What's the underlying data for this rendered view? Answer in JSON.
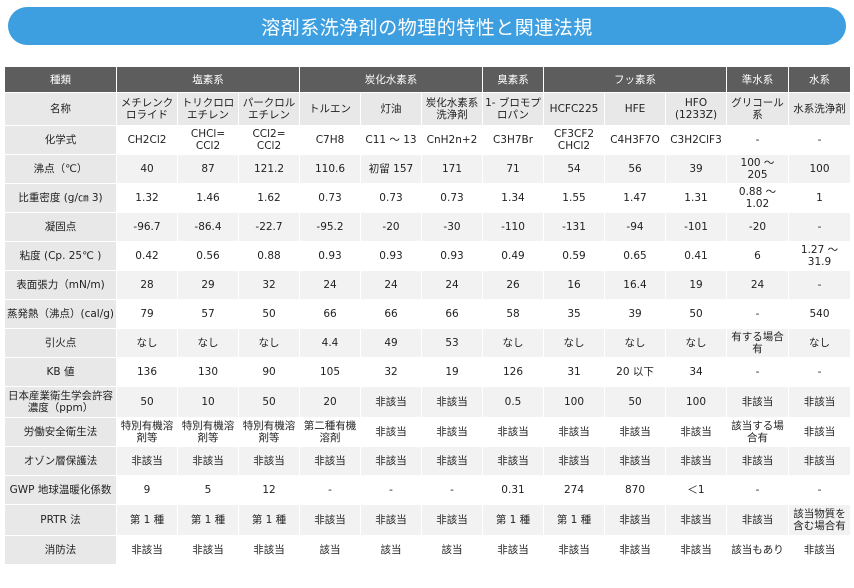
{
  "title": "溶剤系洗浄剤の物理的特性と関連法規",
  "group_header_label": "種類",
  "groups": [
    "塩素系",
    "炭化水素系",
    "臭素系",
    "フッ素系",
    "準水系",
    "水系"
  ],
  "name_header_label": "名称",
  "names": [
    "メチレンク\nロライド",
    "トリクロロ\nエチレン",
    "パークロル\nエチレン",
    "トルエン",
    "灯油",
    "炭化水素系\n洗浄剤",
    "1- ブロモプ\nロパン",
    "HCFC225",
    "HFE",
    "HFO\n(1233Z)",
    "グリコール\n系",
    "水系洗浄剤"
  ],
  "rows": [
    {
      "label": "化学式",
      "values": [
        "CH2Cl2",
        "CHCl=\nCCl2",
        "CCl2=\nCCl2",
        "C7H8",
        "C11 ～ 13",
        "CnH2n+2",
        "C3H7Br",
        "CF3CF2\nCHCl2",
        "C4H3F7O",
        "C3H2ClF3",
        "-",
        "-"
      ]
    },
    {
      "label": "沸点（℃）",
      "values": [
        "40",
        "87",
        "121.2",
        "110.6",
        "初留 157",
        "171",
        "71",
        "54",
        "56",
        "39",
        "100 ～\n205",
        "100"
      ]
    },
    {
      "label": "比重密度 (g/㎝ 3)",
      "values": [
        "1.32",
        "1.46",
        "1.62",
        "0.73",
        "0.73",
        "0.73",
        "1.34",
        "1.55",
        "1.47",
        "1.31",
        "0.88 ～\n1.02",
        "1"
      ]
    },
    {
      "label": "凝固点",
      "values": [
        "-96.7",
        "-86.4",
        "-22.7",
        "-95.2",
        "-20",
        "-30",
        "-110",
        "-131",
        "-94",
        "-101",
        "-20",
        "-"
      ]
    },
    {
      "label": "粘度 (Cp. 25℃ )",
      "values": [
        "0.42",
        "0.56",
        "0.88",
        "0.93",
        "0.93",
        "0.93",
        "0.49",
        "0.59",
        "0.65",
        "0.41",
        "6",
        "1.27 ～\n31.9"
      ]
    },
    {
      "label": "表面張力（mN/m)",
      "values": [
        "28",
        "29",
        "32",
        "24",
        "24",
        "24",
        "26",
        "16",
        "16.4",
        "19",
        "24",
        "-"
      ]
    },
    {
      "label": "蒸発熱（沸点）(cal/g)",
      "values": [
        "79",
        "57",
        "50",
        "66",
        "66",
        "66",
        "58",
        "35",
        "39",
        "50",
        "-",
        "540"
      ]
    },
    {
      "label": "引火点",
      "values": [
        "なし",
        "なし",
        "なし",
        "4.4",
        "49",
        "53",
        "なし",
        "なし",
        "なし",
        "なし",
        "有する場合\n有",
        "なし"
      ]
    },
    {
      "label": "KB 値",
      "values": [
        "136",
        "130",
        "90",
        "105",
        "32",
        "19",
        "126",
        "31",
        "20 以下",
        "34",
        "-",
        "-"
      ]
    },
    {
      "label": "日本産業衛生学会許容\n濃度（ppm）",
      "values": [
        "50",
        "10",
        "50",
        "20",
        "非該当",
        "非該当",
        "0.5",
        "100",
        "50",
        "100",
        "非該当",
        "非該当"
      ]
    },
    {
      "label": "労働安全衛生法",
      "values": [
        "特別有機溶\n剤等",
        "特別有機溶\n剤等",
        "特別有機溶\n剤等",
        "第二種有機\n溶剤",
        "非該当",
        "非該当",
        "非該当",
        "非該当",
        "非該当",
        "非該当",
        "該当する場\n合有",
        "非該当"
      ]
    },
    {
      "label": "オゾン層保護法",
      "values": [
        "非該当",
        "非該当",
        "非該当",
        "非該当",
        "非該当",
        "非該当",
        "非該当",
        "非該当",
        "非該当",
        "非該当",
        "非該当",
        "非該当"
      ]
    },
    {
      "label": "GWP 地球温暖化係数",
      "values": [
        "9",
        "5",
        "12",
        "-",
        "-",
        "-",
        "0.31",
        "274",
        "870",
        "＜1",
        "-",
        "-"
      ]
    },
    {
      "label": "PRTR 法",
      "values": [
        "第 1 種",
        "第 1 種",
        "第 1 種",
        "非該当",
        "非該当",
        "非該当",
        "第 1 種",
        "第 1 種",
        "非該当",
        "非該当",
        "非該当",
        "該当物質を\n含む場合有"
      ]
    },
    {
      "label": "消防法",
      "values": [
        "非該当",
        "非該当",
        "非該当",
        "該当",
        "該当",
        "該当",
        "非該当",
        "非該当",
        "非該当",
        "非該当",
        "該当もあり",
        "非該当"
      ]
    }
  ]
}
